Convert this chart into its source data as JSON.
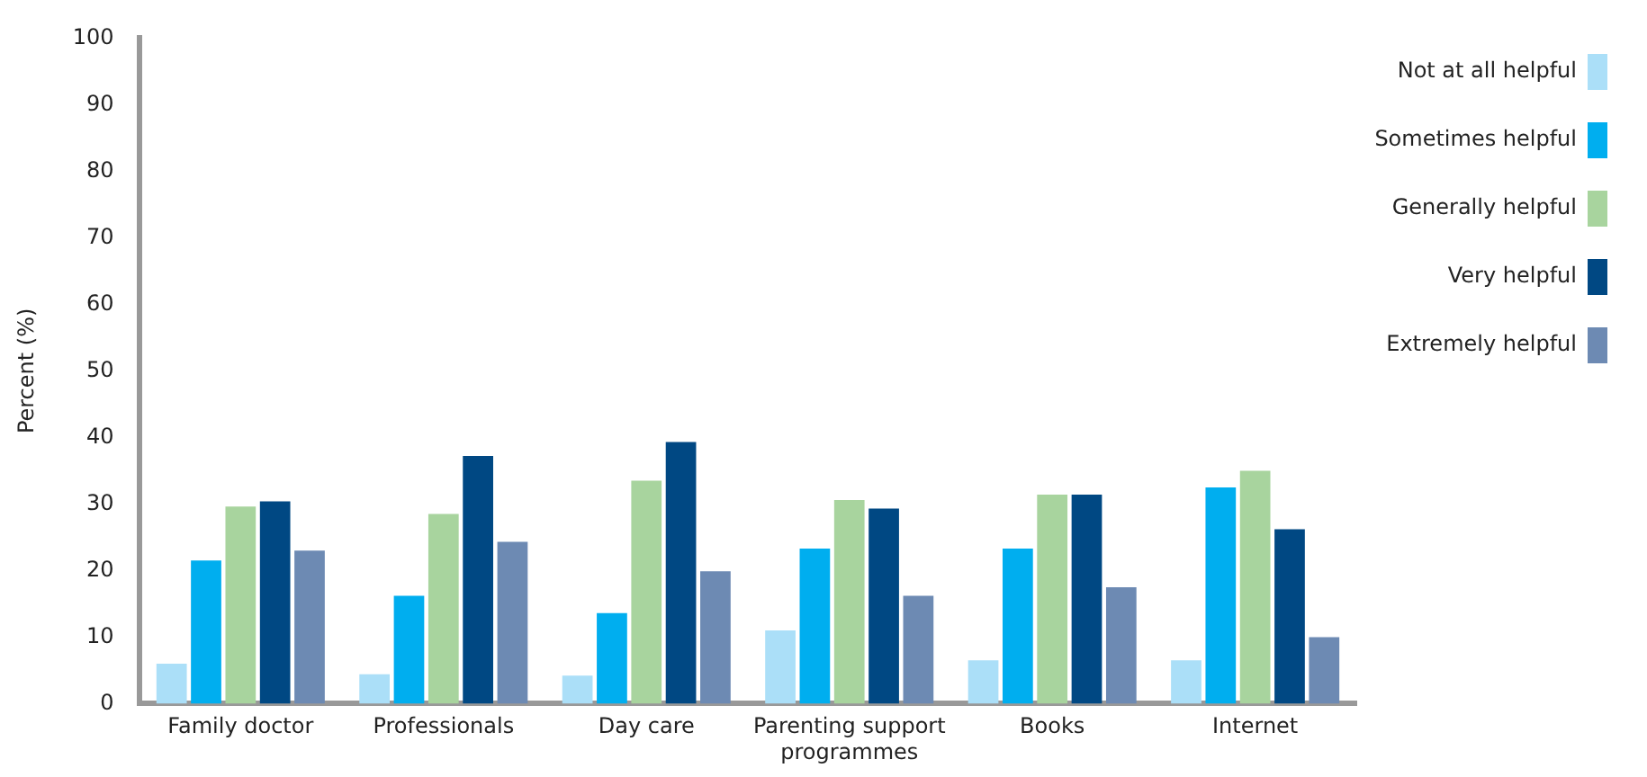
{
  "chart_data": {
    "type": "bar",
    "ylabel": "Percent (%)",
    "categories": [
      "Family doctor",
      "Professionals",
      "Day care",
      "Parenting support programmes",
      "Books",
      "Internet"
    ],
    "series": [
      {
        "name": "Not at all helpful",
        "color": "#abdff8",
        "values": [
          6.0,
          4.4,
          4.2,
          11.0,
          6.5,
          6.5
        ]
      },
      {
        "name": "Sometimes helpful",
        "color": "#00aeef",
        "values": [
          21.5,
          16.2,
          13.6,
          23.3,
          23.3,
          32.5
        ]
      },
      {
        "name": "Generally helpful",
        "color": "#a8d49e",
        "values": [
          29.6,
          28.5,
          33.5,
          30.6,
          31.4,
          35.0
        ]
      },
      {
        "name": "Very helpful",
        "color": "#004883",
        "values": [
          30.4,
          37.2,
          39.3,
          29.3,
          31.4,
          26.2
        ]
      },
      {
        "name": "Extremely helpful",
        "color": "#6d8ab3",
        "values": [
          23.0,
          24.3,
          19.9,
          16.2,
          17.5,
          10.0
        ]
      }
    ],
    "ylim": [
      0,
      100
    ],
    "yticks": [
      0,
      10,
      20,
      30,
      40,
      50,
      60,
      70,
      80,
      90,
      100
    ],
    "grid": false,
    "legend": "top right"
  }
}
